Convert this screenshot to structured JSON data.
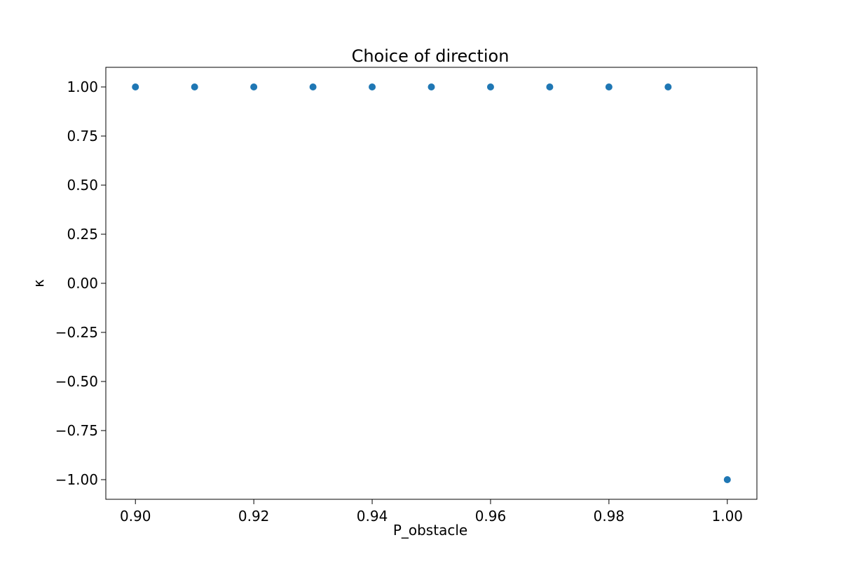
{
  "chart_data": {
    "type": "scatter",
    "title": "Choice of direction",
    "xlabel": "P_obstacle",
    "ylabel": "κ",
    "xlim": [
      0.895,
      1.005
    ],
    "ylim": [
      -1.1,
      1.1
    ],
    "xticks": [
      0.9,
      0.92,
      0.94,
      0.96,
      0.98,
      1.0
    ],
    "xtick_labels": [
      "0.90",
      "0.92",
      "0.94",
      "0.96",
      "0.98",
      "1.00"
    ],
    "yticks": [
      1.0,
      0.75,
      0.5,
      0.25,
      0.0,
      -0.25,
      -0.5,
      -0.75,
      -1.0
    ],
    "ytick_labels": [
      "1.00",
      "0.75",
      "0.50",
      "0.25",
      "0.00",
      "−0.25",
      "−0.50",
      "−0.75",
      "−1.00"
    ],
    "grid": false,
    "legend": "none",
    "series": [
      {
        "color": "#1f77b4",
        "x": [
          0.9,
          0.91,
          0.92,
          0.93,
          0.94,
          0.95,
          0.96,
          0.97,
          0.98,
          0.99,
          1.0
        ],
        "y": [
          1,
          1,
          1,
          1,
          1,
          1,
          1,
          1,
          1,
          1,
          -1
        ]
      }
    ]
  }
}
